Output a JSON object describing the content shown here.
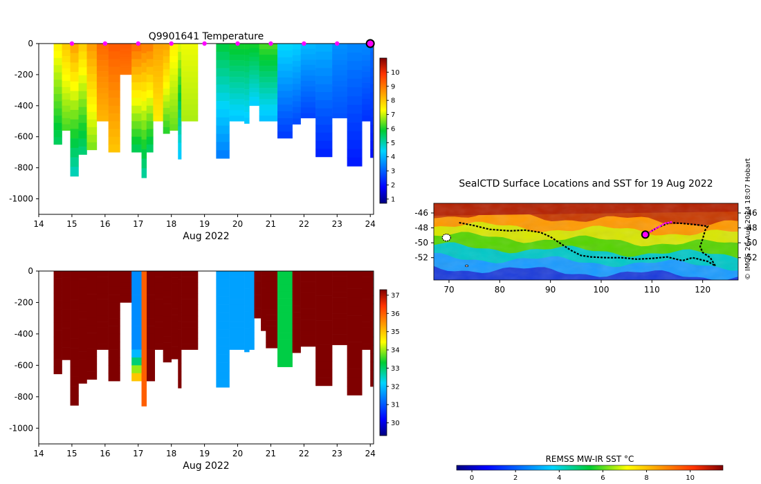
{
  "chart_data": [
    {
      "type": "heatmap",
      "title": "Q9901641  Temperature",
      "xlabel": "Aug 2022",
      "ylabel": "",
      "xlim": [
        14,
        24.1
      ],
      "ylim": [
        -1100,
        0
      ],
      "x_ticks": [
        "14",
        "15",
        "16",
        "17",
        "18",
        "19",
        "20",
        "21",
        "22",
        "23",
        "24"
      ],
      "y_ticks": [
        "0",
        "-200",
        "-400",
        "-600",
        "-800",
        "-1000"
      ],
      "colorbar": {
        "min": 0.7,
        "max": 11,
        "ticks": [
          "1",
          "2",
          "3",
          "4",
          "5",
          "6",
          "7",
          "8",
          "9",
          "10"
        ]
      },
      "surface_markers_days": [
        15,
        16,
        17,
        18,
        19,
        20,
        21,
        22,
        23
      ],
      "current_marker_day": 24,
      "profiles": [
        {
          "x0": 14.45,
          "x1": 14.7,
          "depth": 650,
          "top": 7.5,
          "bottom": 5.5
        },
        {
          "x0": 14.7,
          "x1": 14.95,
          "depth": 560,
          "top": 8,
          "bottom": 6.2
        },
        {
          "x0": 14.95,
          "x1": 15.2,
          "depth": 855,
          "top": 8.5,
          "bottom": 4.8
        },
        {
          "x0": 15.2,
          "x1": 15.45,
          "depth": 715,
          "top": 8,
          "bottom": 5.3
        },
        {
          "x0": 15.45,
          "x1": 15.75,
          "depth": 685,
          "top": 8.6,
          "bottom": 6.5
        },
        {
          "x0": 15.75,
          "x1": 16.1,
          "depth": 500,
          "top": 9.2,
          "bottom": 8.2
        },
        {
          "x0": 16.1,
          "x1": 16.45,
          "depth": 700,
          "top": 9.4,
          "bottom": 8
        },
        {
          "x0": 16.45,
          "x1": 16.8,
          "depth": 200,
          "top": 9.4,
          "bottom": 9
        },
        {
          "x0": 16.8,
          "x1": 17.1,
          "depth": 700,
          "top": 9.2,
          "bottom": 5.5
        },
        {
          "x0": 17.1,
          "x1": 17.25,
          "depth": 865,
          "top": 9,
          "bottom": 5
        },
        {
          "x0": 17.25,
          "x1": 17.45,
          "depth": 700,
          "top": 9,
          "bottom": 5.4
        },
        {
          "x0": 17.45,
          "x1": 17.75,
          "depth": 500,
          "top": 8.5,
          "bottom": 7.5
        },
        {
          "x0": 17.75,
          "x1": 17.95,
          "depth": 580,
          "top": 8.5,
          "bottom": 6
        },
        {
          "x0": 17.95,
          "x1": 18.2,
          "depth": 560,
          "top": 7.5,
          "bottom": 6.4
        },
        {
          "x0": 18.2,
          "x1": 18.3,
          "depth": 745,
          "top": 7.2,
          "bottom": 4.2
        },
        {
          "x0": 18.3,
          "x1": 18.8,
          "depth": 500,
          "top": 7.2,
          "bottom": 6.8
        },
        {
          "x0": 19.35,
          "x1": 19.75,
          "depth": 740,
          "top": 5.8,
          "bottom": 3.3
        },
        {
          "x0": 19.75,
          "x1": 20.2,
          "depth": 500,
          "top": 6,
          "bottom": 4.2
        },
        {
          "x0": 20.2,
          "x1": 20.35,
          "depth": 515,
          "top": 6,
          "bottom": 4.2
        },
        {
          "x0": 20.35,
          "x1": 20.65,
          "depth": 400,
          "top": 6,
          "bottom": 4.3
        },
        {
          "x0": 20.65,
          "x1": 21.2,
          "depth": 500,
          "top": 6.3,
          "bottom": 4.1
        },
        {
          "x0": 21.2,
          "x1": 21.65,
          "depth": 610,
          "top": 4.5,
          "bottom": 2.5
        },
        {
          "x0": 21.65,
          "x1": 21.9,
          "depth": 520,
          "top": 4.4,
          "bottom": 2.7
        },
        {
          "x0": 21.9,
          "x1": 22.35,
          "depth": 480,
          "top": 4.1,
          "bottom": 2.6
        },
        {
          "x0": 22.35,
          "x1": 22.85,
          "depth": 730,
          "top": 4,
          "bottom": 2.2
        },
        {
          "x0": 22.85,
          "x1": 23.3,
          "depth": 480,
          "top": 3.6,
          "bottom": 2.8
        },
        {
          "x0": 23.3,
          "x1": 23.75,
          "depth": 790,
          "top": 3.5,
          "bottom": 2.1
        },
        {
          "x0": 23.75,
          "x1": 24.0,
          "depth": 500,
          "top": 3.5,
          "bottom": 2.4
        },
        {
          "x0": 24.0,
          "x1": 24.08,
          "depth": 735,
          "top": 3.2,
          "bottom": 2.0
        }
      ]
    },
    {
      "type": "heatmap",
      "title": "",
      "xlabel": "Aug 2022",
      "ylabel": "",
      "xlim": [
        14,
        24.1
      ],
      "ylim": [
        -1100,
        0
      ],
      "x_ticks": [
        "14",
        "15",
        "16",
        "17",
        "18",
        "19",
        "20",
        "21",
        "22",
        "23",
        "24"
      ],
      "y_ticks": [
        "0",
        "-200",
        "-400",
        "-600",
        "-800",
        "-1000"
      ],
      "colorbar": {
        "min": 29.3,
        "max": 37.3,
        "ticks": [
          "30",
          "31",
          "32",
          "33",
          "34",
          "35",
          "36",
          "37"
        ]
      },
      "profiles": [
        {
          "x0": 14.45,
          "x1": 14.7,
          "depth": 655,
          "top": 37.3,
          "bottom": 37.3
        },
        {
          "x0": 14.7,
          "x1": 14.95,
          "depth": 565,
          "top": 37.3,
          "bottom": 37.3
        },
        {
          "x0": 14.95,
          "x1": 15.2,
          "depth": 855,
          "top": 37.3,
          "bottom": 37.3
        },
        {
          "x0": 15.2,
          "x1": 15.45,
          "depth": 715,
          "top": 37.3,
          "bottom": 37.3
        },
        {
          "x0": 15.45,
          "x1": 15.75,
          "depth": 690,
          "top": 37.3,
          "bottom": 37.3
        },
        {
          "x0": 15.75,
          "x1": 16.1,
          "depth": 500,
          "top": 37.3,
          "bottom": 37.3
        },
        {
          "x0": 16.1,
          "x1": 16.45,
          "depth": 700,
          "top": 37.3,
          "bottom": 37.3
        },
        {
          "x0": 16.45,
          "x1": 16.8,
          "depth": 200,
          "top": 37.3,
          "bottom": 37.3
        },
        {
          "x0": 16.8,
          "x1": 17.2,
          "depth": 700,
          "top": 31.5,
          "bottom": 35.5,
          "split": 0.72
        },
        {
          "x0": 17.2,
          "x1": 17.5,
          "depth": 700,
          "top": 37.3,
          "bottom": 37.3
        },
        {
          "x0": 17.1,
          "x1": 17.25,
          "depth": 860,
          "top": 36,
          "bottom": 36
        },
        {
          "x0": 17.5,
          "x1": 17.75,
          "depth": 500,
          "top": 37.3,
          "bottom": 37.3
        },
        {
          "x0": 17.75,
          "x1": 18.0,
          "depth": 580,
          "top": 37.3,
          "bottom": 37.3
        },
        {
          "x0": 18.0,
          "x1": 18.2,
          "depth": 560,
          "top": 37.3,
          "bottom": 37.3
        },
        {
          "x0": 18.2,
          "x1": 18.3,
          "depth": 745,
          "top": 37.3,
          "bottom": 37.3
        },
        {
          "x0": 18.3,
          "x1": 18.8,
          "depth": 500,
          "top": 37.3,
          "bottom": 37.3
        },
        {
          "x0": 19.35,
          "x1": 19.75,
          "depth": 740,
          "top": 31.7,
          "bottom": 31.7
        },
        {
          "x0": 19.75,
          "x1": 20.2,
          "depth": 500,
          "top": 31.7,
          "bottom": 31.7
        },
        {
          "x0": 20.2,
          "x1": 20.35,
          "depth": 515,
          "top": 31.7,
          "bottom": 31.7
        },
        {
          "x0": 20.35,
          "x1": 20.5,
          "depth": 500,
          "top": 31.7,
          "bottom": 31.7
        },
        {
          "x0": 20.5,
          "x1": 20.7,
          "depth": 300,
          "top": 37.3,
          "bottom": 37.3
        },
        {
          "x0": 20.7,
          "x1": 20.85,
          "depth": 380,
          "top": 37.3,
          "bottom": 37.3
        },
        {
          "x0": 20.85,
          "x1": 21.2,
          "depth": 490,
          "top": 37.3,
          "bottom": 37.3
        },
        {
          "x0": 21.2,
          "x1": 21.65,
          "depth": 610,
          "top": 33.2,
          "bottom": 33.2
        },
        {
          "x0": 21.65,
          "x1": 21.9,
          "depth": 520,
          "top": 37.3,
          "bottom": 37.3
        },
        {
          "x0": 21.9,
          "x1": 22.35,
          "depth": 480,
          "top": 37.3,
          "bottom": 37.3
        },
        {
          "x0": 22.35,
          "x1": 22.85,
          "depth": 730,
          "top": 37.3,
          "bottom": 37.3
        },
        {
          "x0": 22.85,
          "x1": 23.3,
          "depth": 470,
          "top": 37.3,
          "bottom": 37.3
        },
        {
          "x0": 23.3,
          "x1": 23.75,
          "depth": 790,
          "top": 37.3,
          "bottom": 37.3
        },
        {
          "x0": 23.75,
          "x1": 24.0,
          "depth": 500,
          "top": 37.3,
          "bottom": 37.3
        },
        {
          "x0": 24.0,
          "x1": 24.08,
          "depth": 735,
          "top": 37.3,
          "bottom": 37.3
        }
      ]
    },
    {
      "type": "heatmap",
      "title": "SealCTD Surface Locations and SST for 19 Aug 2022",
      "xlabel": "",
      "ylabel": "",
      "xlim": [
        67,
        127
      ],
      "ylim": [
        -55,
        -44.7
      ],
      "x_ticks": [
        "70",
        "80",
        "90",
        "100",
        "110",
        "120"
      ],
      "y_ticks": [
        "-46",
        "-48",
        "-50",
        "-52"
      ],
      "track": [
        [
          72,
          -47.3
        ],
        [
          75,
          -47.7
        ],
        [
          78,
          -48.2
        ],
        [
          82,
          -48.4
        ],
        [
          85,
          -48.3
        ],
        [
          88,
          -48.6
        ],
        [
          90,
          -49.2
        ],
        [
          92,
          -50.1
        ],
        [
          94,
          -51.0
        ],
        [
          96,
          -51.7
        ],
        [
          98,
          -51.9
        ],
        [
          101,
          -52.0
        ],
        [
          104,
          -52.0
        ],
        [
          107,
          -52.2
        ],
        [
          110,
          -52.1
        ],
        [
          113,
          -51.9
        ],
        [
          116,
          -52.4
        ],
        [
          118,
          -52.0
        ],
        [
          121,
          -52.5
        ],
        [
          122.5,
          -53.1
        ],
        [
          121.5,
          -52.0
        ],
        [
          120,
          -51.3
        ],
        [
          119.5,
          -50.5
        ],
        [
          120,
          -49.5
        ],
        [
          120.5,
          -48.3
        ],
        [
          121,
          -47.8
        ],
        [
          119,
          -47.6
        ],
        [
          116,
          -47.4
        ],
        [
          113.5,
          -47.3
        ],
        [
          111,
          -48.0
        ],
        [
          108.7,
          -48.9
        ]
      ],
      "recent_track": [
        [
          108.7,
          -48.9
        ],
        [
          111,
          -48.0
        ],
        [
          112.5,
          -47.4
        ],
        [
          114,
          -47.2
        ]
      ],
      "current_position": [
        108.7,
        -48.9
      ]
    }
  ],
  "sst_colorbar": {
    "label": "REMSS MW-IR SST °C",
    "min": -0.7,
    "max": 11.5,
    "ticks": [
      "0",
      "2",
      "4",
      "6",
      "8",
      "10"
    ]
  },
  "watermark": "© IMOS 26-Aug-2024 18:07 Hobart"
}
